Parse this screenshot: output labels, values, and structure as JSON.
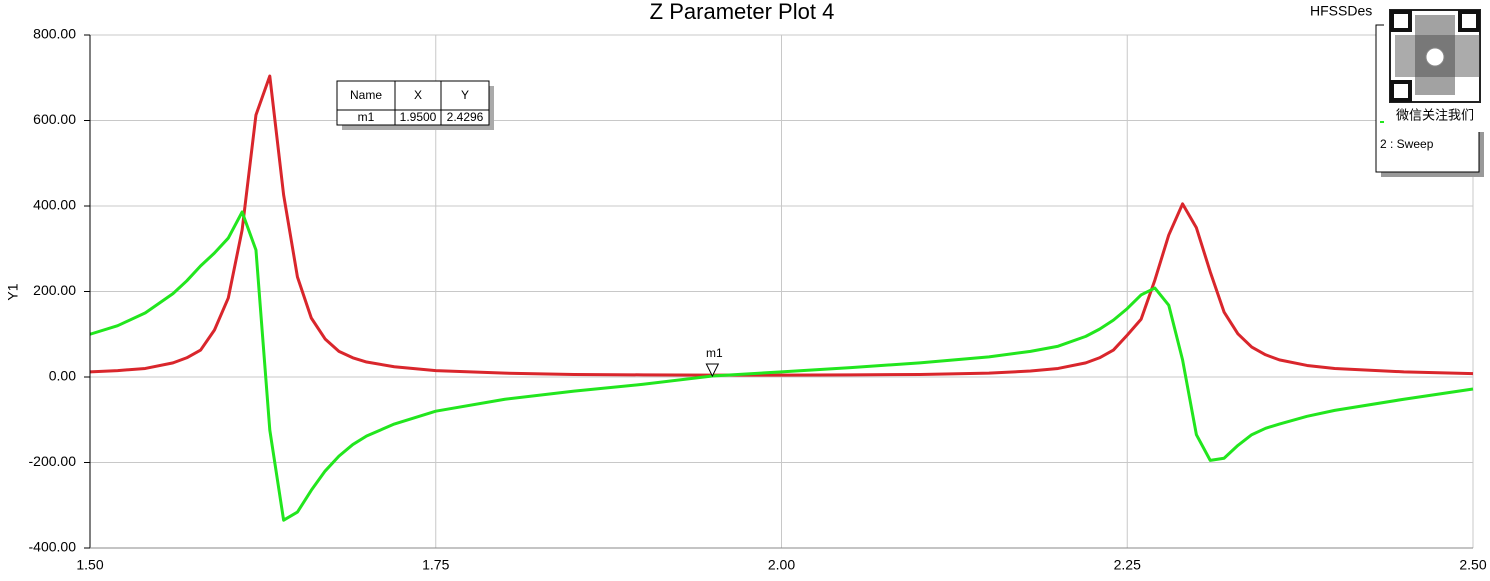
{
  "chart_data": {
    "type": "line",
    "title": "Z Parameter Plot 4",
    "corner_label": "HFSSDes",
    "y_label": "Y1",
    "x": [
      1.5,
      1.52,
      1.54,
      1.56,
      1.57,
      1.58,
      1.59,
      1.6,
      1.61,
      1.62,
      1.63,
      1.64,
      1.65,
      1.66,
      1.67,
      1.68,
      1.69,
      1.7,
      1.72,
      1.75,
      1.8,
      1.85,
      1.9,
      1.95,
      2.0,
      2.05,
      2.1,
      2.15,
      2.18,
      2.2,
      2.22,
      2.23,
      2.24,
      2.25,
      2.26,
      2.27,
      2.28,
      2.29,
      2.3,
      2.31,
      2.32,
      2.33,
      2.34,
      2.35,
      2.36,
      2.38,
      2.4,
      2.45,
      2.5
    ],
    "series": [
      {
        "color": "#d9262c",
        "values": [
          12,
          15,
          20,
          33,
          45,
          63,
          110,
          185,
          344,
          613,
          704,
          426,
          234,
          138,
          89,
          60,
          45,
          35,
          24,
          15,
          9,
          6,
          5,
          4.5,
          4.5,
          5,
          6,
          9,
          14,
          20,
          33,
          45,
          63,
          98,
          135,
          227,
          332,
          405,
          349,
          246,
          152,
          101,
          70,
          52,
          40,
          27,
          20,
          12,
          8
        ]
      },
      {
        "color": "#22e61e",
        "values": [
          100,
          120,
          150,
          195,
          225,
          260,
          290,
          325,
          386,
          297,
          -124,
          -335,
          -316,
          -265,
          -220,
          -185,
          -158,
          -138,
          -110,
          -80,
          -52,
          -33,
          -17,
          2.43,
          12,
          22,
          33,
          47,
          60,
          72,
          95,
          112,
          133,
          160,
          192,
          208,
          168,
          40,
          -135,
          -195,
          -190,
          -160,
          -135,
          -120,
          -110,
          -92,
          -78,
          -52,
          -28
        ]
      }
    ],
    "xlim": [
      1.5,
      2.5
    ],
    "ylim": [
      -400,
      800
    ],
    "xticks": [
      {
        "value": 1.5,
        "label": "1.50"
      },
      {
        "value": 1.75,
        "label": "1.75"
      },
      {
        "value": 2.0,
        "label": "2.00"
      },
      {
        "value": 2.25,
        "label": "2.25"
      },
      {
        "value": 2.5,
        "label": "2.50"
      }
    ],
    "yticks": [
      {
        "value": -400,
        "label": "-400.00"
      },
      {
        "value": -200,
        "label": "-200.00"
      },
      {
        "value": 0,
        "label": "0.00"
      },
      {
        "value": 200,
        "label": "200.00"
      },
      {
        "value": 400,
        "label": "400.00"
      },
      {
        "value": 600,
        "label": "600.00"
      },
      {
        "value": 800,
        "label": "800.00"
      }
    ],
    "grid": true,
    "marker": {
      "name": "m1",
      "x": 1.95,
      "y": 2.4296,
      "x_label": "1.9500",
      "y_label": "2.4296"
    },
    "marker_table_header": [
      "Name",
      "X",
      "Y"
    ],
    "legend_text": "2 : Sweep",
    "overlay_caption": "微信关注我们"
  }
}
